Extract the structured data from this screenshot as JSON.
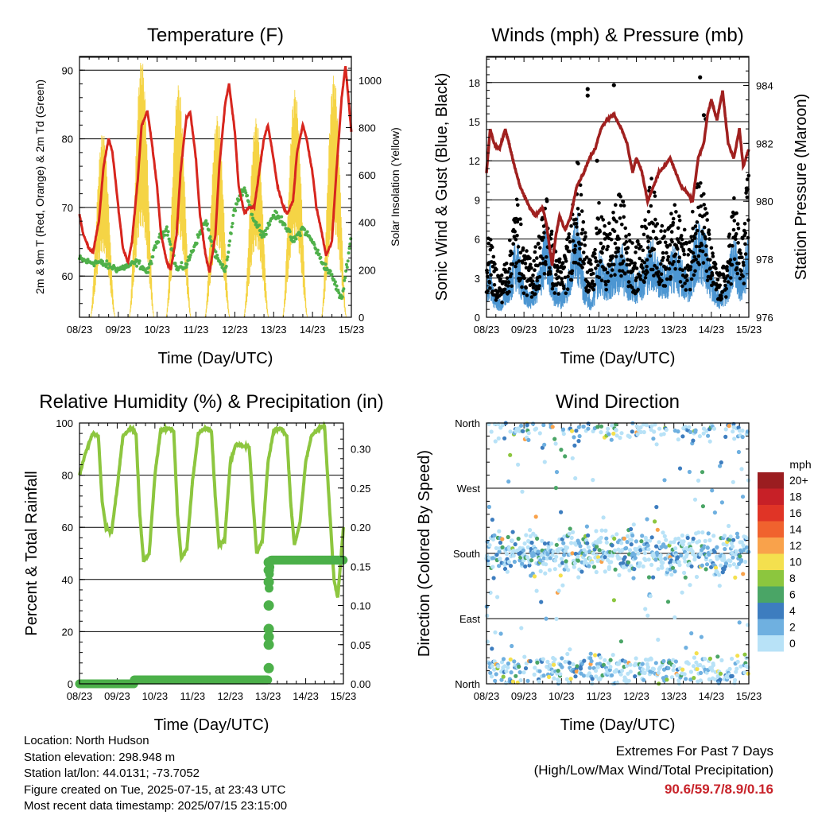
{
  "chart_data": [
    {
      "type": "line",
      "title": "Temperature (F)",
      "xlabel": "Time (Day/UTC)",
      "ylabel": "2m & 9m T (Red, Orange) & 2m Td (Green)",
      "y2label": "Solar Insolation (Yellow)",
      "categories": [
        "08/23",
        "09/23",
        "10/23",
        "11/23",
        "12/23",
        "13/23",
        "14/23",
        "15/23"
      ],
      "ylim": [
        54,
        92
      ],
      "yticks": [
        60,
        70,
        80,
        90
      ],
      "y2lim": [
        0,
        1100
      ],
      "y2ticks": [
        0,
        200,
        400,
        600,
        800,
        1000
      ],
      "grid": true,
      "series": [
        {
          "name": "2m T",
          "color": "#d7261e",
          "x": [
            0,
            0.1,
            0.25,
            0.35,
            0.5,
            0.62,
            0.75,
            0.85,
            1.0,
            1.12,
            1.25,
            1.35,
            1.5,
            1.6,
            1.75,
            1.85,
            2.0,
            2.1,
            2.25,
            2.35,
            2.5,
            2.6,
            2.75,
            2.85,
            3.0,
            3.1,
            3.25,
            3.35,
            3.5,
            3.6,
            3.75,
            3.85,
            4.0,
            4.1,
            4.25,
            4.35,
            4.5,
            4.6,
            4.75,
            4.85,
            5.0,
            5.1,
            5.25,
            5.35,
            5.5,
            5.6,
            5.75,
            5.85,
            6.0,
            6.1,
            6.25,
            6.35,
            6.5,
            6.6,
            6.75,
            6.85,
            7.0
          ],
          "y": [
            69,
            66,
            64,
            63.5,
            68,
            76,
            80,
            78,
            70,
            64,
            62,
            65,
            74,
            82,
            84,
            80,
            73,
            66,
            62,
            61,
            66,
            75,
            83,
            84,
            77,
            69,
            63,
            60.5,
            66,
            76,
            85,
            88,
            81,
            73,
            69,
            70,
            70,
            74,
            80,
            82,
            77,
            73,
            70,
            69,
            71,
            78,
            82,
            80,
            75,
            70,
            66,
            63,
            65,
            74,
            86,
            90.6,
            81
          ]
        },
        {
          "name": "2m Td",
          "color": "#4fb04a",
          "x": [
            0,
            0.25,
            0.5,
            0.75,
            1.0,
            1.25,
            1.5,
            1.75,
            2.0,
            2.25,
            2.5,
            2.75,
            3.0,
            3.25,
            3.5,
            3.75,
            4.0,
            4.25,
            4.5,
            4.75,
            5.0,
            5.25,
            5.5,
            5.75,
            6.0,
            6.25,
            6.5,
            6.75,
            7.0
          ],
          "y": [
            62.5,
            62,
            62,
            61.5,
            61,
            61.5,
            62,
            60.5,
            65,
            67,
            61,
            61.5,
            65,
            68,
            63,
            60.5,
            70,
            73,
            68,
            66,
            69,
            68,
            65,
            67,
            65,
            62,
            60,
            56.5,
            66
          ]
        },
        {
          "name": "Solar Insolation",
          "color": "#f5d445",
          "axis": "right",
          "peaks": [
            [
              0.6,
              780
            ],
            [
              1.6,
              1090
            ],
            [
              2.55,
              980
            ],
            [
              3.55,
              850
            ],
            [
              4.55,
              840
            ],
            [
              5.55,
              960
            ],
            [
              6.55,
              1020
            ]
          ]
        }
      ]
    },
    {
      "type": "scatter",
      "title": "Winds (mph) & Pressure (mb)",
      "xlabel": "Time (Day/UTC)",
      "ylabel": "Sonic Wind & Gust (Blue, Black)",
      "y2label": "Station Pressure (Maroon)",
      "categories": [
        "08/23",
        "09/23",
        "10/23",
        "11/23",
        "12/23",
        "13/23",
        "14/23",
        "15/23"
      ],
      "ylim": [
        0,
        20
      ],
      "yticks": [
        0,
        3,
        6,
        9,
        12,
        15,
        18
      ],
      "y2lim": [
        976,
        985
      ],
      "y2ticks": [
        976,
        978,
        980,
        982,
        984
      ],
      "grid": true,
      "series": [
        {
          "name": "Station Pressure",
          "color": "#a0201f",
          "axis": "right",
          "x": [
            0,
            0.1,
            0.2,
            0.35,
            0.5,
            0.6,
            0.75,
            0.9,
            1.0,
            1.15,
            1.3,
            1.5,
            1.6,
            1.75,
            1.85,
            1.95,
            2.1,
            2.25,
            2.4,
            2.6,
            2.75,
            2.9,
            3.05,
            3.2,
            3.4,
            3.6,
            3.75,
            3.9,
            4.0,
            4.15,
            4.3,
            4.45,
            4.6,
            4.75,
            4.9,
            5.05,
            5.2,
            5.35,
            5.5,
            5.65,
            5.8,
            5.9,
            6.0,
            6.15,
            6.3,
            6.45,
            6.6,
            6.75,
            6.85,
            7.0
          ],
          "y": [
            981.0,
            982.5,
            982.0,
            981.8,
            982.5,
            982.0,
            981.2,
            980.5,
            980.2,
            979.8,
            979.5,
            979.8,
            979.2,
            977.8,
            978.8,
            979.5,
            979.0,
            979.5,
            980.5,
            981.0,
            981.5,
            981.8,
            982.5,
            982.8,
            983.0,
            982.5,
            982.0,
            981.0,
            981.5,
            981.0,
            980.0,
            980.5,
            981.0,
            981.2,
            981.5,
            981.0,
            980.5,
            980.3,
            980.0,
            981.5,
            982.0,
            983.0,
            983.5,
            982.8,
            983.8,
            982.0,
            981.5,
            982.5,
            981.2,
            981.8
          ]
        },
        {
          "name": "Sonic Wind",
          "color": "#4c96d2",
          "x": [
            0,
            0.1,
            0.2,
            0.4,
            0.6,
            0.8,
            1.0,
            1.2,
            1.4,
            1.6,
            1.8,
            2.0,
            2.2,
            2.4,
            2.6,
            2.8,
            3.0,
            3.2,
            3.4,
            3.6,
            3.8,
            4.0,
            4.2,
            4.4,
            4.6,
            4.8,
            5.0,
            5.2,
            5.4,
            5.6,
            5.8,
            6.0,
            6.2,
            6.4,
            6.6,
            6.8,
            7.0
          ],
          "y": [
            2,
            3.5,
            1.5,
            1,
            2.5,
            5,
            2,
            1.5,
            3,
            6,
            2,
            1.5,
            3,
            7,
            2.5,
            1,
            4,
            3,
            3.5,
            4.5,
            3,
            2.5,
            3.5,
            5,
            3.5,
            3,
            4.5,
            3.5,
            2.5,
            6,
            5.5,
            3,
            1.5,
            2,
            5.5,
            2.5,
            5.5
          ]
        },
        {
          "name": "Gust",
          "color": "#000000",
          "x": [
            0,
            0.1,
            0.2,
            0.4,
            0.6,
            0.8,
            1.0,
            1.2,
            1.4,
            1.6,
            1.8,
            2.0,
            2.2,
            2.4,
            2.6,
            2.8,
            3.0,
            3.2,
            3.4,
            3.6,
            3.8,
            4.0,
            4.2,
            4.4,
            4.6,
            4.8,
            5.0,
            5.2,
            5.4,
            5.6,
            5.8,
            6.0,
            6.2,
            6.4,
            6.6,
            6.8,
            7.0
          ],
          "y": [
            5,
            6,
            4,
            3,
            5,
            9,
            5,
            4,
            6,
            9,
            5,
            4,
            6,
            12,
            7,
            3.5,
            8,
            6,
            8,
            9,
            6,
            5,
            7,
            10,
            7,
            6,
            8,
            7,
            5,
            11,
            9,
            5,
            3,
            4,
            9,
            5,
            11
          ],
          "outliers": [
            [
              2.7,
              17.5
            ],
            [
              2.7,
              17.0
            ],
            [
              3.4,
              17.8
            ],
            [
              5.7,
              18.4
            ],
            [
              5.8,
              15.5
            ],
            [
              5.85,
              15.2
            ],
            [
              2.95,
              12
            ]
          ]
        }
      ]
    },
    {
      "type": "line",
      "title": "Relative Humidity (%) & Precipitation (in)",
      "xlabel": "Time (Day/UTC)",
      "ylabel": "Percent & Total Rainfall",
      "categories": [
        "08/23",
        "09/23",
        "10/23",
        "11/23",
        "12/23",
        "13/23",
        "14/23",
        "15/23"
      ],
      "ylim": [
        0,
        100
      ],
      "yticks": [
        0,
        20,
        40,
        60,
        80,
        100
      ],
      "y2lim": [
        0,
        0.333
      ],
      "y2ticks": [
        0.0,
        0.05,
        0.1,
        0.15,
        0.2,
        0.25,
        0.3
      ],
      "grid": true,
      "series": [
        {
          "name": "Relative Humidity",
          "color": "#8dc63f",
          "x": [
            0,
            0.15,
            0.35,
            0.5,
            0.6,
            0.7,
            0.85,
            1.0,
            1.15,
            1.35,
            1.5,
            1.6,
            1.7,
            1.85,
            2.0,
            2.15,
            2.35,
            2.5,
            2.6,
            2.7,
            2.85,
            3.0,
            3.15,
            3.35,
            3.5,
            3.6,
            3.7,
            3.85,
            4.0,
            4.15,
            4.35,
            4.5,
            4.6,
            4.7,
            4.85,
            5.0,
            5.15,
            5.35,
            5.5,
            5.6,
            5.7,
            5.85,
            6.0,
            6.15,
            6.35,
            6.5,
            6.6,
            6.75,
            6.85,
            7.0
          ],
          "y": [
            80,
            88,
            96,
            95,
            70,
            60,
            58,
            75,
            95,
            98,
            96,
            65,
            47,
            50,
            80,
            97,
            98,
            97,
            65,
            48,
            52,
            78,
            96,
            98,
            97,
            72,
            53,
            55,
            85,
            92,
            91,
            91,
            70,
            50,
            55,
            85,
            97,
            98,
            95,
            70,
            53,
            62,
            85,
            95,
            98,
            99,
            75,
            40,
            33,
            60
          ]
        },
        {
          "name": "Total Rainfall",
          "color": "#4cb04a",
          "axis": "right",
          "x": [
            0,
            1.45,
            1.45,
            5.0,
            5.0,
            5.02,
            5.04,
            5.06,
            5.08,
            7.0
          ],
          "y": [
            0.0,
            0.0,
            0.005,
            0.005,
            0.06,
            0.11,
            0.14,
            0.155,
            0.158,
            0.158
          ]
        }
      ]
    },
    {
      "type": "scatter",
      "title": "Wind Direction",
      "xlabel": "Time (Day/UTC)",
      "ylabel": "Direction (Colored By Speed)",
      "categories": [
        "08/23",
        "09/23",
        "10/23",
        "11/23",
        "12/23",
        "13/23",
        "14/23",
        "15/23"
      ],
      "ylim": [
        0,
        360
      ],
      "ytick_labels": [
        "North",
        "East",
        "South",
        "West",
        "North"
      ],
      "grid": true,
      "colorbar": {
        "unit": "mph",
        "labels": [
          "20+",
          "18",
          "16",
          "14",
          "12",
          "10",
          "8",
          "6",
          "4",
          "2",
          "0"
        ],
        "colors": [
          "#9b1d20",
          "#c72027",
          "#e03426",
          "#f0622e",
          "#f9a24b",
          "#f4e04e",
          "#8cc63e",
          "#4aa566",
          "#3d7dbf",
          "#6fb0e0",
          "#b8e2f7"
        ]
      }
    }
  ],
  "info": {
    "location": "Location: North Hudson",
    "elevation": "Station elevation: 298.948 m",
    "latlon": "Station lat/lon: 44.0131; -73.7052",
    "created": "Figure created on Tue, 2025-07-15, at 23:43 UTC",
    "recent": "Most recent data timestamp: 2025/07/15 23:15:00"
  },
  "extremes": {
    "line1": "Extremes For Past 7 Days",
    "line2": "(High/Low/Max Wind/Total Precipitation)",
    "values": "90.6/59.7/8.9/0.16"
  }
}
